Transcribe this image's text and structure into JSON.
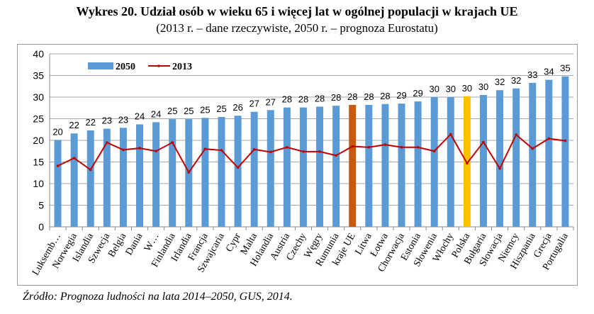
{
  "title": "Wykres 20. Udział osób w wieku 65 i więcej lat w ogólnej populacji w krajach UE",
  "subtitle": "(2013 r. – dane rzeczywiste, 2050 r. – prognoza Eurostatu)",
  "source": "Źródło: Prognoza ludności na lata 2014–2050, GUS, 2014.",
  "chart_data": {
    "type": "bar",
    "categories": [
      "Luksemb…",
      "Norwegia",
      "Islandia",
      "Szwecja",
      "Belgia",
      "Dania",
      "W…",
      "Finlandia",
      "Irlandia",
      "Francja",
      "Szwajcaria",
      "Cypr",
      "Malta",
      "Holandia",
      "Austria",
      "Czechy",
      "Węgry",
      "Rumunia",
      "kraje UE",
      "Litwa",
      "Łotwa",
      "Chorwacja",
      "Estonia",
      "Słowenia",
      "Włochy",
      "Polska",
      "Bułgaria",
      "Słowacja",
      "Niemcy",
      "Hiszpania",
      "Grecja",
      "Portugalia"
    ],
    "series": [
      {
        "name": "2050",
        "type": "bar",
        "color": "#5b9bd5",
        "values": [
          20.1,
          21.6,
          22.3,
          22.7,
          22.9,
          23.7,
          24.2,
          24.9,
          24.9,
          25.2,
          25.4,
          25.7,
          26.6,
          27.0,
          27.6,
          27.6,
          27.8,
          28.0,
          28.2,
          28.2,
          28.4,
          28.5,
          29.0,
          30.0,
          30.0,
          30.2,
          30.5,
          31.6,
          32.0,
          33.3,
          34.0,
          34.8
        ],
        "labels": [
          "20",
          "22",
          "22",
          "23",
          "23",
          "24",
          "24",
          "25",
          "25",
          "25",
          "25",
          "26",
          "27",
          "27",
          "28",
          "28",
          "28",
          "28",
          "28",
          "28",
          "28",
          "29",
          "29",
          "30",
          "30",
          "30",
          "30",
          "32",
          "32",
          "33",
          "34",
          "35"
        ],
        "highlight": {
          "kraje UE": "#c55a11",
          "Polska": "#ffc000"
        }
      },
      {
        "name": "2013",
        "type": "line",
        "color": "#c00000",
        "values": [
          14.1,
          15.9,
          13.2,
          19.5,
          17.8,
          18.2,
          17.5,
          19.5,
          12.6,
          18.0,
          17.7,
          13.7,
          17.9,
          17.3,
          18.4,
          17.4,
          17.4,
          16.5,
          18.6,
          18.4,
          19.0,
          18.4,
          18.4,
          17.5,
          21.4,
          14.7,
          19.6,
          13.5,
          21.3,
          18.1,
          20.4,
          19.9
        ]
      }
    ],
    "ylim": [
      0,
      40
    ],
    "yticks": [
      0,
      5,
      10,
      15,
      20,
      25,
      30,
      35,
      40
    ],
    "grid": true,
    "legend": "top-left"
  }
}
